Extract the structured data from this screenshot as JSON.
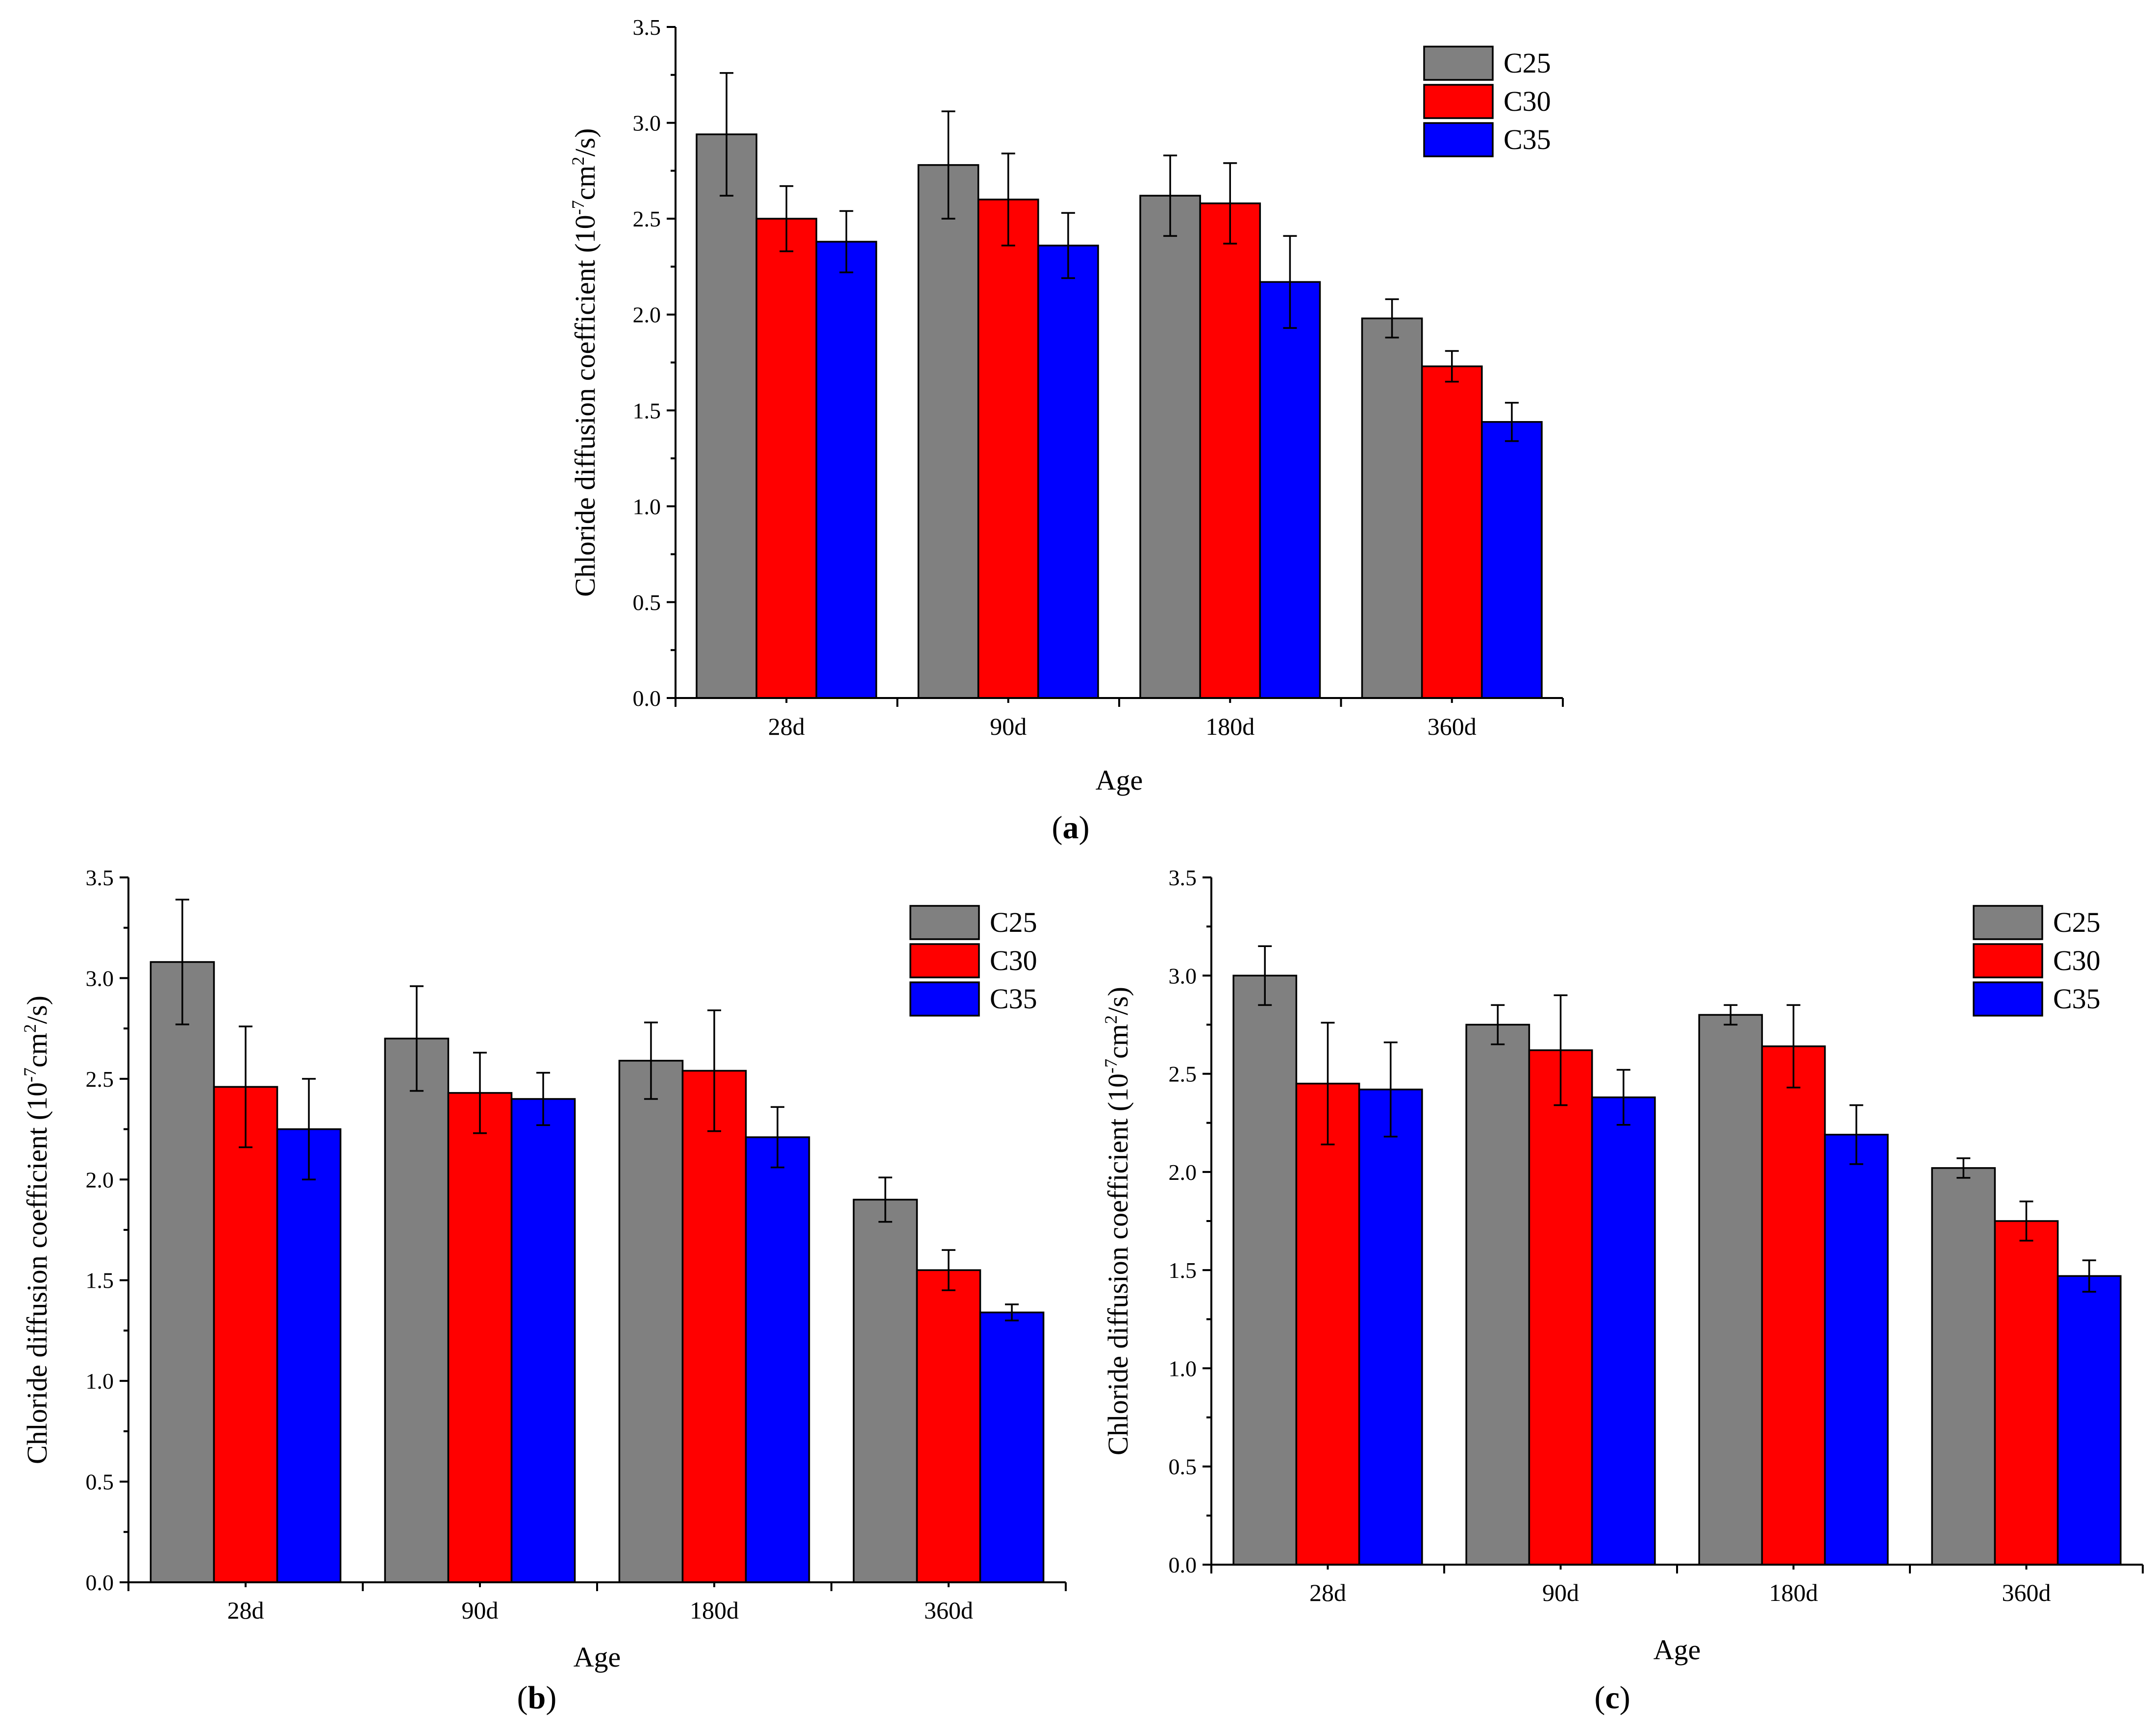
{
  "figure": {
    "panel_labels": [
      "a",
      "b",
      "c"
    ]
  },
  "legend": {
    "entries": [
      "C25",
      "C30",
      "C35"
    ],
    "colors": [
      "#808080",
      "#ff0000",
      "#0000ff"
    ]
  },
  "chart_data": [
    {
      "panel": "a",
      "type": "bar",
      "xlabel": "Age",
      "ylabel": "Chloride diffusion coefficient (10-7cm2/s)",
      "ylabel_parts": {
        "pre": "Chloride diffusion coefficient (10",
        "sup1": "-7",
        "mid": "cm",
        "sup2": "2",
        "post": "/s)"
      },
      "ylim": [
        0.0,
        3.5
      ],
      "yticks": [
        "0.0",
        "0.5",
        "1.0",
        "1.5",
        "2.0",
        "2.5",
        "3.0",
        "3.5"
      ],
      "categories": [
        "28d",
        "90d",
        "180d",
        "360d"
      ],
      "series": [
        {
          "name": "C25",
          "values": [
            2.94,
            2.78,
            2.62,
            1.98
          ],
          "errors": [
            0.32,
            0.28,
            0.21,
            0.1
          ]
        },
        {
          "name": "C30",
          "values": [
            2.5,
            2.6,
            2.58,
            1.73
          ],
          "errors": [
            0.17,
            0.24,
            0.21,
            0.08
          ]
        },
        {
          "name": "C35",
          "values": [
            2.38,
            2.36,
            2.17,
            1.44
          ],
          "errors": [
            0.16,
            0.17,
            0.24,
            0.1
          ]
        }
      ]
    },
    {
      "panel": "b",
      "type": "bar",
      "xlabel": "Age",
      "ylabel": "Chloride diffusion coefficient (10-7cm2/s)",
      "ylabel_parts": {
        "pre": "Chloride diffusion coefficient (10",
        "sup1": "-7",
        "mid": "cm",
        "sup2": "2",
        "post": "/s)"
      },
      "ylim": [
        0.0,
        3.5
      ],
      "yticks": [
        "0.0",
        "0.5",
        "1.0",
        "1.5",
        "2.0",
        "2.5",
        "3.0",
        "3.5"
      ],
      "categories": [
        "28d",
        "90d",
        "180d",
        "360d"
      ],
      "series": [
        {
          "name": "C25",
          "values": [
            3.08,
            2.7,
            2.59,
            1.9
          ],
          "errors": [
            0.31,
            0.26,
            0.19,
            0.11
          ]
        },
        {
          "name": "C30",
          "values": [
            2.46,
            2.43,
            2.54,
            1.55
          ],
          "errors": [
            0.3,
            0.2,
            0.3,
            0.1
          ]
        },
        {
          "name": "C35",
          "values": [
            2.25,
            2.4,
            2.21,
            1.34
          ],
          "errors": [
            0.25,
            0.13,
            0.15,
            0.04
          ]
        }
      ]
    },
    {
      "panel": "c",
      "type": "bar",
      "xlabel": "Age",
      "ylabel": "Chloride diffusion coefficient (10-7cm2/s)",
      "ylabel_parts": {
        "pre": "Chloride diffusion coefficient (10",
        "sup1": "-7",
        "mid": "cm",
        "sup2": "2",
        "post": "/s)"
      },
      "ylim": [
        0.0,
        3.5
      ],
      "yticks": [
        "0.0",
        "0.5",
        "1.0",
        "1.5",
        "2.0",
        "2.5",
        "3.0",
        "3.5"
      ],
      "categories": [
        "28d",
        "90d",
        "180d",
        "360d"
      ],
      "series": [
        {
          "name": "C25",
          "values": [
            3.0,
            2.75,
            2.8,
            2.02
          ],
          "errors": [
            0.15,
            0.1,
            0.05,
            0.05
          ]
        },
        {
          "name": "C30",
          "values": [
            2.45,
            2.62,
            2.64,
            1.75
          ],
          "errors": [
            0.31,
            0.28,
            0.21,
            0.1
          ]
        },
        {
          "name": "C35",
          "values": [
            2.42,
            2.38,
            2.19,
            1.47
          ],
          "errors": [
            0.24,
            0.14,
            0.15,
            0.08
          ]
        }
      ]
    }
  ]
}
